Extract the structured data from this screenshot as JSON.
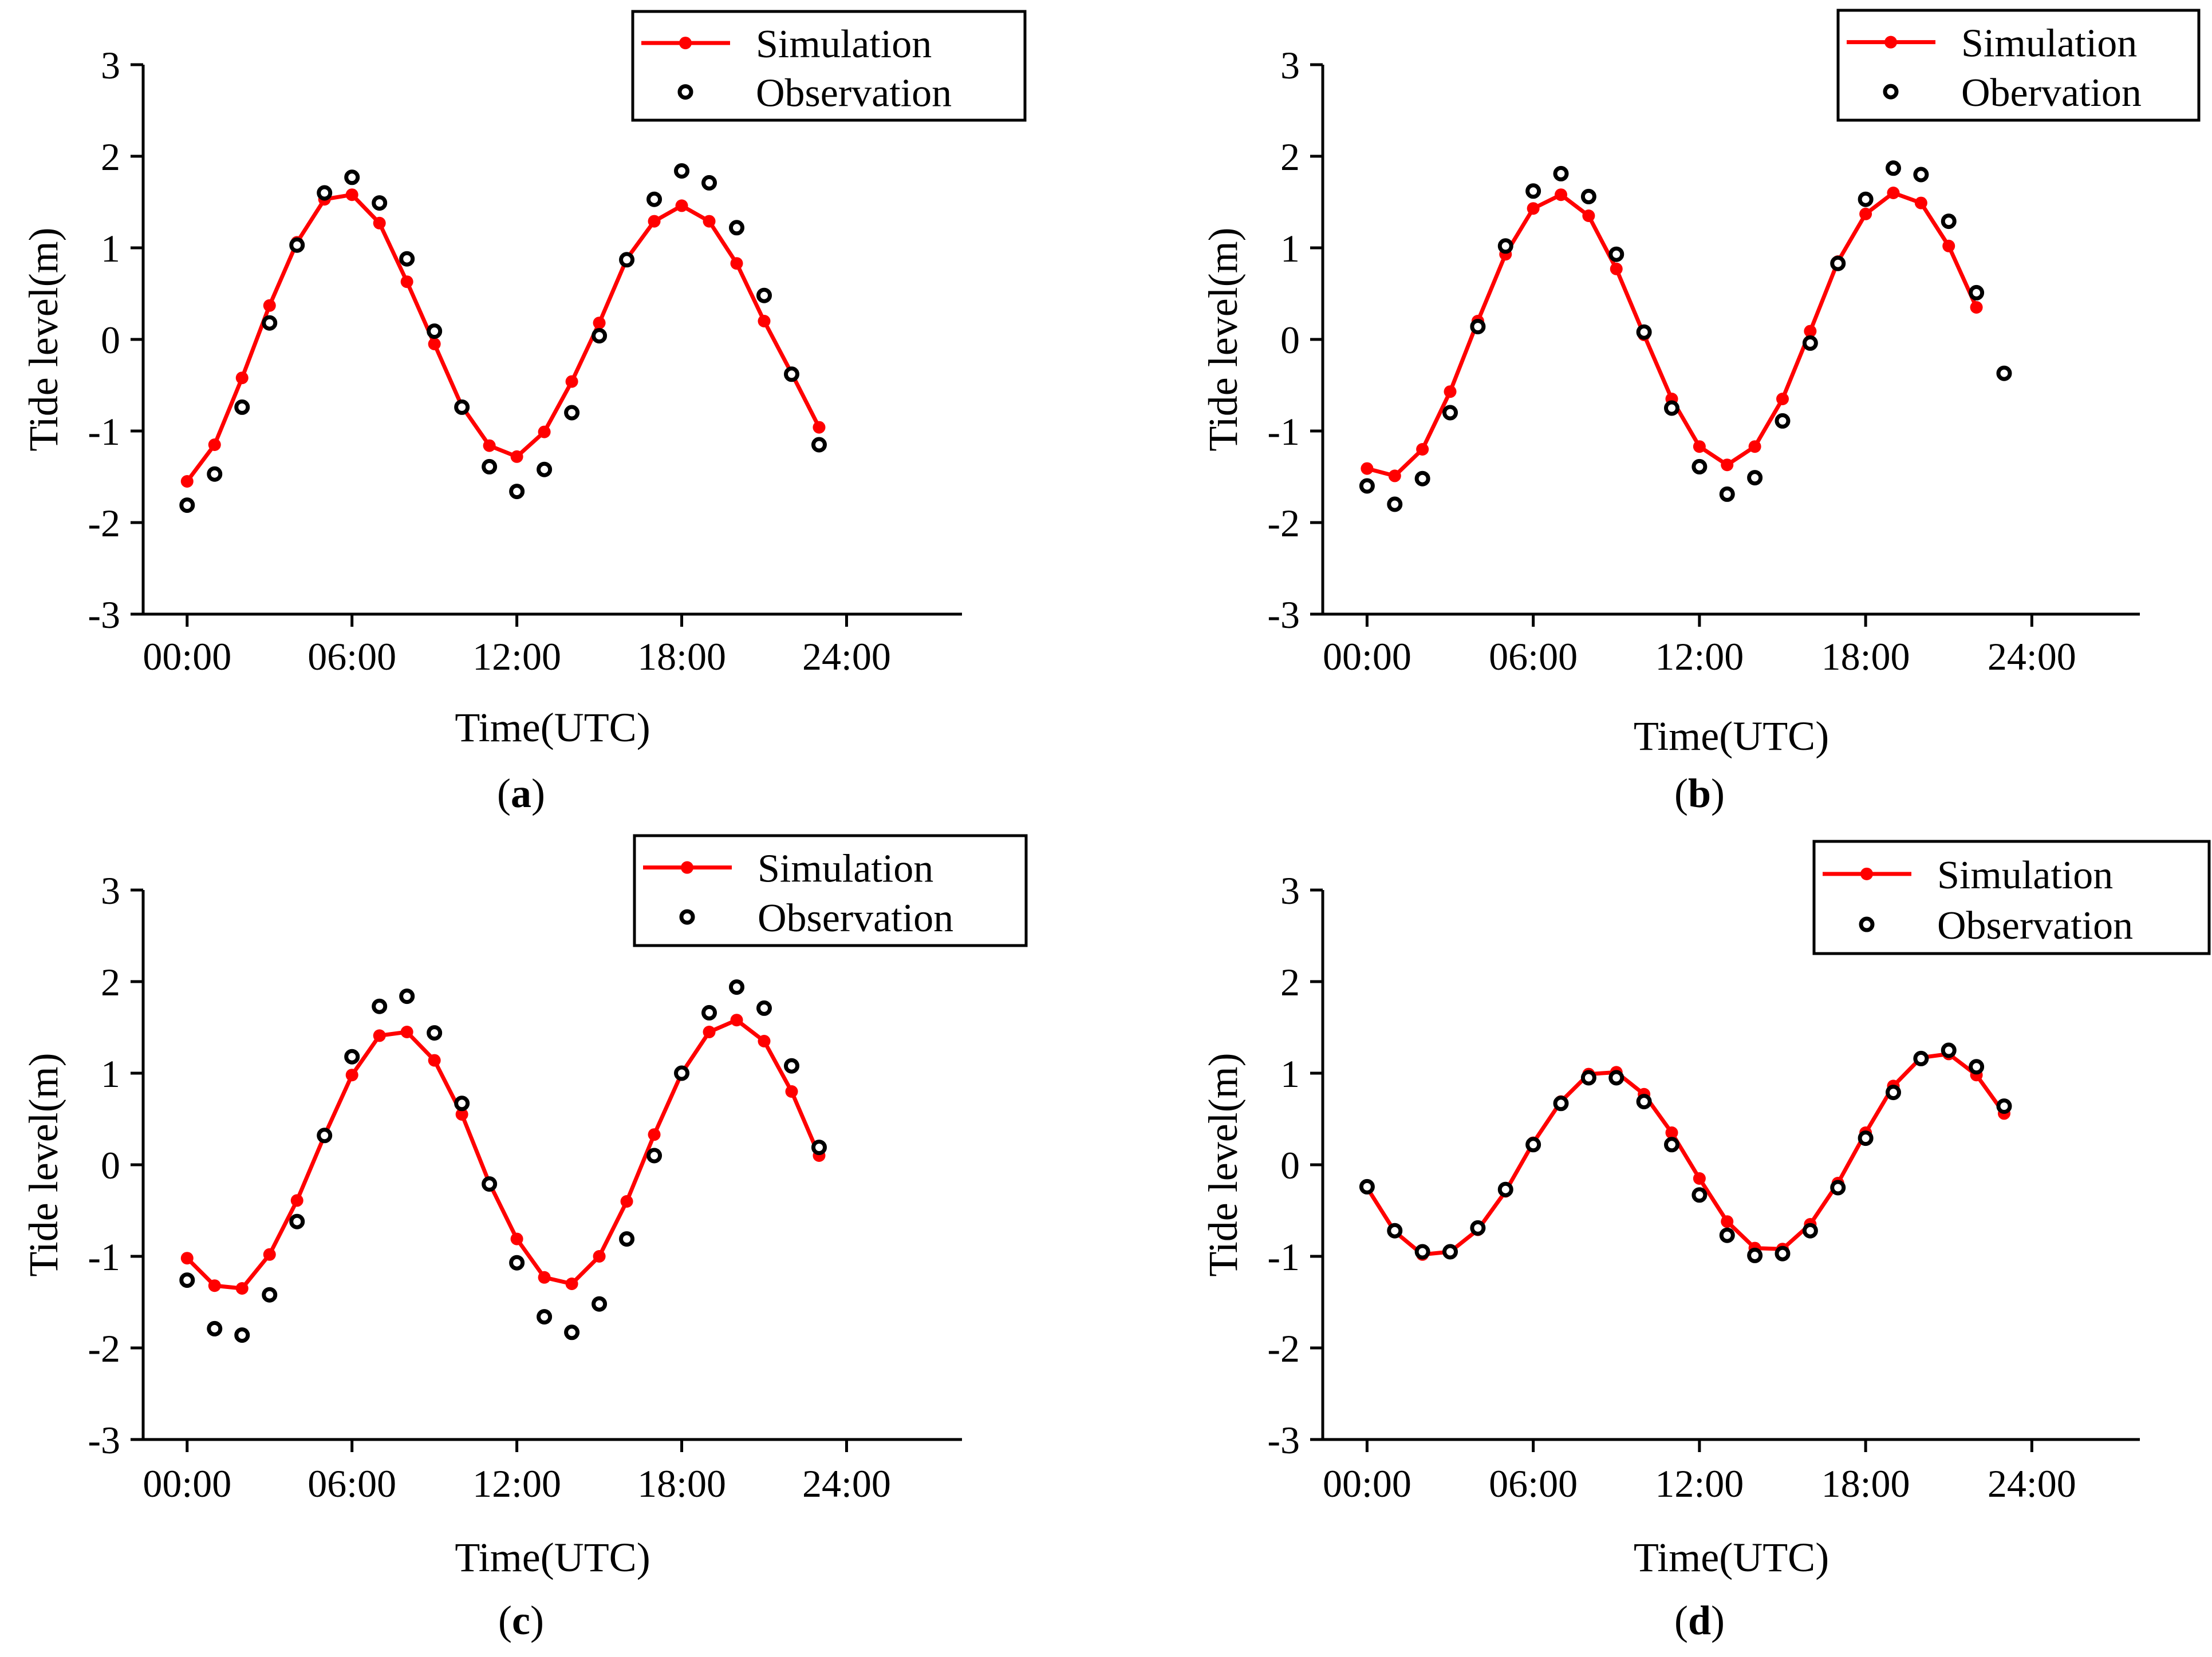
{
  "colors": {
    "simulation": "#ff0000",
    "observation": "#000000"
  },
  "chart_data": [
    {
      "type": "line",
      "caption": "a",
      "xlabel": "Time(UTC)",
      "ylabel": "Tide level(m)",
      "xlim": [
        -1.6,
        28.2
      ],
      "ylim": [
        -3,
        3
      ],
      "xticks": [
        0,
        6,
        12,
        18,
        24
      ],
      "xtick_labels": [
        "00:00",
        "06:00",
        "12:00",
        "18:00",
        "24:00"
      ],
      "yticks": [
        -3,
        -2,
        -1,
        0,
        1,
        2,
        3
      ],
      "ytick_labels": [
        "-3",
        "-2",
        "-1",
        "0",
        "1",
        "2",
        "3"
      ],
      "legend": {
        "placement": "top-right",
        "entries": [
          "Simulation",
          "Observation"
        ]
      },
      "series": [
        {
          "name": "Simulation",
          "style": "line-marker",
          "x": [
            0,
            1,
            2,
            3,
            4,
            5,
            6,
            7,
            8,
            9,
            10,
            11,
            12,
            13,
            14,
            15,
            16,
            17,
            18,
            19,
            20,
            21,
            22,
            23
          ],
          "values": [
            -1.55,
            -1.15,
            -0.42,
            0.37,
            1.06,
            1.53,
            1.58,
            1.27,
            0.63,
            -0.05,
            -0.73,
            -1.16,
            -1.28,
            -1.01,
            -0.46,
            0.18,
            0.88,
            1.29,
            1.46,
            1.29,
            0.83,
            0.2,
            -0.37,
            -0.96
          ]
        },
        {
          "name": "Observation",
          "style": "marker",
          "x": [
            0,
            1,
            2,
            3,
            4,
            5,
            6,
            7,
            8,
            9,
            10,
            11,
            12,
            13,
            14,
            15,
            16,
            17,
            18,
            19,
            20,
            21,
            22,
            23
          ],
          "values": [
            -1.81,
            -1.47,
            -0.74,
            0.18,
            1.03,
            1.6,
            1.77,
            1.49,
            0.88,
            0.09,
            -0.74,
            -1.39,
            -1.66,
            -1.42,
            -0.8,
            0.04,
            0.87,
            1.53,
            1.84,
            1.71,
            1.22,
            0.48,
            -0.38,
            -1.15
          ]
        }
      ]
    },
    {
      "type": "line",
      "caption": "b",
      "xlabel": "Time(UTC)",
      "ylabel": "Tide level(m)",
      "xlim": [
        -1.6,
        27.9
      ],
      "ylim": [
        -3,
        3
      ],
      "xticks": [
        0,
        6,
        12,
        18,
        24
      ],
      "xtick_labels": [
        "00:00",
        "06:00",
        "12:00",
        "18:00",
        "24:00"
      ],
      "yticks": [
        -3,
        -2,
        -1,
        0,
        1,
        2,
        3
      ],
      "ytick_labels": [
        "-3",
        "-2",
        "-1",
        "0",
        "1",
        "2",
        "3"
      ],
      "legend": {
        "placement": "top-right",
        "entries": [
          "Simulation",
          "Obervation"
        ]
      },
      "series": [
        {
          "name": "Simulation",
          "style": "line-marker",
          "x": [
            0,
            1,
            2,
            3,
            4,
            5,
            6,
            7,
            8,
            9,
            10,
            11,
            12,
            13,
            14,
            15,
            16,
            17,
            18,
            19,
            20,
            21,
            22
          ],
          "values": [
            -1.41,
            -1.49,
            -1.2,
            -0.57,
            0.2,
            0.93,
            1.43,
            1.58,
            1.35,
            0.77,
            0.05,
            -0.65,
            -1.17,
            -1.37,
            -1.17,
            -0.65,
            0.09,
            0.85,
            1.37,
            1.6,
            1.49,
            1.02,
            0.35
          ]
        },
        {
          "name": "Obervation",
          "style": "marker",
          "x": [
            0,
            1,
            2,
            3,
            4,
            5,
            6,
            7,
            8,
            9,
            10,
            11,
            12,
            13,
            14,
            15,
            16,
            17,
            18,
            19,
            20,
            21,
            22,
            23
          ],
          "values": [
            -1.6,
            -1.8,
            -1.52,
            -0.8,
            0.14,
            1.02,
            1.62,
            1.81,
            1.56,
            0.93,
            0.08,
            -0.75,
            -1.39,
            -1.69,
            -1.51,
            -0.89,
            -0.04,
            0.83,
            1.53,
            1.87,
            1.8,
            1.29,
            0.51,
            -0.37
          ]
        }
      ]
    },
    {
      "type": "line",
      "caption": "c",
      "xlabel": "Time(UTC)",
      "ylabel": "Tide level(m)",
      "xlim": [
        -1.6,
        28.2
      ],
      "ylim": [
        -3,
        3
      ],
      "xticks": [
        0,
        6,
        12,
        18,
        24
      ],
      "xtick_labels": [
        "00:00",
        "06:00",
        "12:00",
        "18:00",
        "24:00"
      ],
      "yticks": [
        -3,
        -2,
        -1,
        0,
        1,
        2,
        3
      ],
      "ytick_labels": [
        "-3",
        "-2",
        "-1",
        "0",
        "1",
        "2",
        "3"
      ],
      "legend": {
        "placement": "top-right",
        "entries": [
          "Simulation",
          "Observation"
        ]
      },
      "series": [
        {
          "name": "Simulation",
          "style": "line-marker",
          "x": [
            0,
            1,
            2,
            3,
            4,
            5,
            6,
            7,
            8,
            9,
            10,
            11,
            12,
            13,
            14,
            15,
            16,
            17,
            18,
            19,
            20,
            21,
            22,
            23
          ],
          "values": [
            -1.02,
            -1.32,
            -1.35,
            -0.98,
            -0.39,
            0.32,
            0.98,
            1.41,
            1.45,
            1.14,
            0.55,
            -0.2,
            -0.81,
            -1.23,
            -1.3,
            -1.0,
            -0.4,
            0.33,
            1.0,
            1.45,
            1.58,
            1.35,
            0.8,
            0.1
          ]
        },
        {
          "name": "Observation",
          "style": "marker",
          "x": [
            0,
            1,
            2,
            3,
            4,
            5,
            6,
            7,
            8,
            9,
            10,
            11,
            12,
            13,
            14,
            15,
            16,
            17,
            18,
            19,
            20,
            21,
            22,
            23
          ],
          "values": [
            -1.26,
            -1.79,
            -1.86,
            -1.42,
            -0.62,
            0.32,
            1.18,
            1.73,
            1.84,
            1.44,
            0.67,
            -0.21,
            -1.07,
            -1.66,
            -1.83,
            -1.52,
            -0.81,
            0.1,
            1.0,
            1.66,
            1.94,
            1.71,
            1.08,
            0.19
          ]
        }
      ]
    },
    {
      "type": "line",
      "caption": "d",
      "xlabel": "Time(UTC)",
      "ylabel": "Tide level(m)",
      "xlim": [
        -1.6,
        27.9
      ],
      "ylim": [
        -3,
        3
      ],
      "xticks": [
        0,
        6,
        12,
        18,
        24
      ],
      "xtick_labels": [
        "00:00",
        "06:00",
        "12:00",
        "18:00",
        "24:00"
      ],
      "yticks": [
        -3,
        -2,
        -1,
        0,
        1,
        2,
        3
      ],
      "ytick_labels": [
        "-3",
        "-2",
        "-1",
        "0",
        "1",
        "2",
        "3"
      ],
      "legend": {
        "placement": "top-right",
        "entries": [
          "Simulation",
          "Observation"
        ]
      },
      "series": [
        {
          "name": "Simulation",
          "style": "line-marker",
          "x": [
            0,
            1,
            2,
            3,
            4,
            5,
            6,
            7,
            8,
            9,
            10,
            11,
            12,
            13,
            14,
            15,
            16,
            17,
            18,
            19,
            20,
            21,
            22,
            23
          ],
          "values": [
            -0.25,
            -0.73,
            -0.98,
            -0.95,
            -0.71,
            -0.29,
            0.24,
            0.69,
            0.99,
            1.01,
            0.77,
            0.35,
            -0.15,
            -0.62,
            -0.91,
            -0.92,
            -0.65,
            -0.2,
            0.35,
            0.86,
            1.17,
            1.21,
            0.98,
            0.56
          ]
        },
        {
          "name": "Observation",
          "style": "marker",
          "x": [
            0,
            1,
            2,
            3,
            4,
            5,
            6,
            7,
            8,
            9,
            10,
            11,
            12,
            13,
            14,
            15,
            16,
            17,
            18,
            19,
            20,
            21,
            22,
            23
          ],
          "values": [
            -0.24,
            -0.72,
            -0.95,
            -0.95,
            -0.69,
            -0.27,
            0.22,
            0.67,
            0.95,
            0.95,
            0.69,
            0.22,
            -0.33,
            -0.77,
            -0.99,
            -0.97,
            -0.72,
            -0.25,
            0.29,
            0.79,
            1.16,
            1.25,
            1.07,
            0.64
          ]
        }
      ]
    }
  ]
}
